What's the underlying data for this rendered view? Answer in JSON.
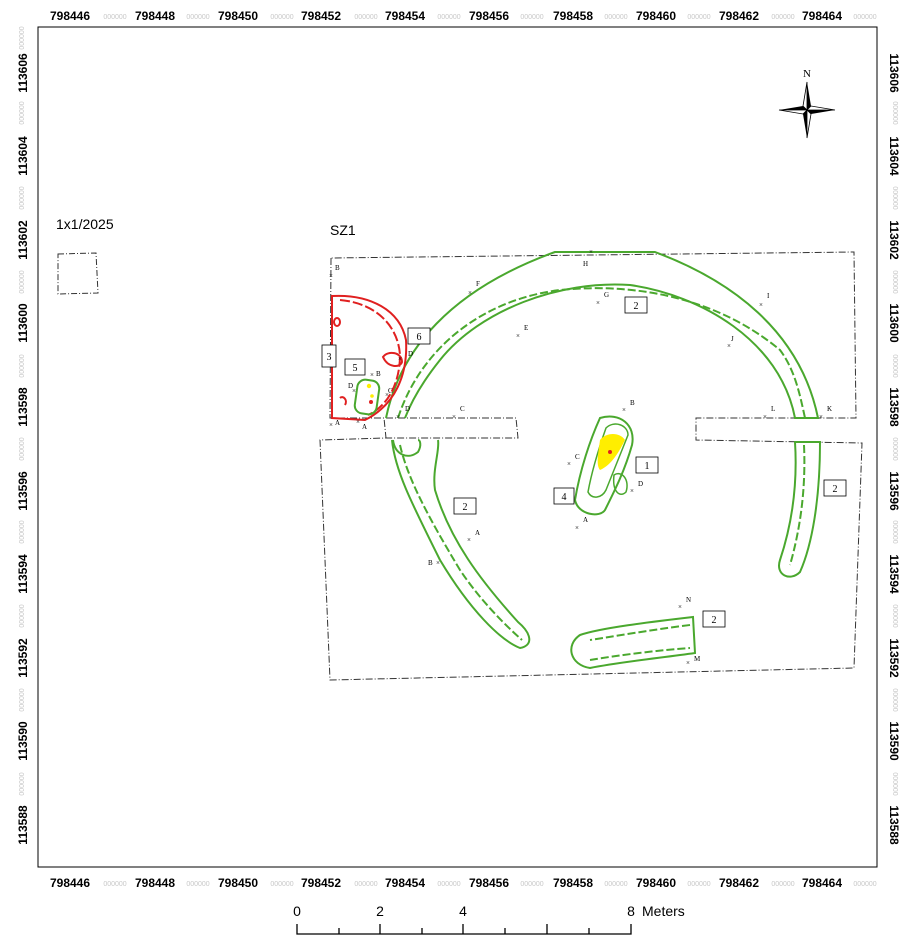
{
  "x_ticks": [
    "798446",
    "798448",
    "798450",
    "798452",
    "798454",
    "798456",
    "798458",
    "798460",
    "798462",
    "798464"
  ],
  "tick_filler": "000000",
  "y_ticks": [
    "113606",
    "113604",
    "113602",
    "113600",
    "113598",
    "113596",
    "113594",
    "113592",
    "113590",
    "113588"
  ],
  "labels": {
    "date_code": "1x1/2025",
    "zone": "SZ1",
    "north": "N"
  },
  "features": [
    {
      "id": "f1",
      "num": "1"
    },
    {
      "id": "f2a",
      "num": "2"
    },
    {
      "id": "f2b",
      "num": "2"
    },
    {
      "id": "f2c",
      "num": "2"
    },
    {
      "id": "f2d",
      "num": "2"
    },
    {
      "id": "f3",
      "num": "3"
    },
    {
      "id": "f4",
      "num": "4"
    },
    {
      "id": "f5",
      "num": "5"
    },
    {
      "id": "f6",
      "num": "6"
    }
  ],
  "points": [
    "A",
    "B",
    "C",
    "D",
    "E",
    "F",
    "G",
    "H",
    "I",
    "J",
    "K",
    "L",
    "M",
    "N"
  ],
  "scalebar": {
    "ticks": [
      "0",
      "2",
      "4",
      "8"
    ],
    "unit": "Meters"
  },
  "colors": {
    "feature_green": "#4aa82e",
    "feature_red": "#e02020",
    "finds_yellow": "#ffee00",
    "outline_gray": "#333333"
  }
}
